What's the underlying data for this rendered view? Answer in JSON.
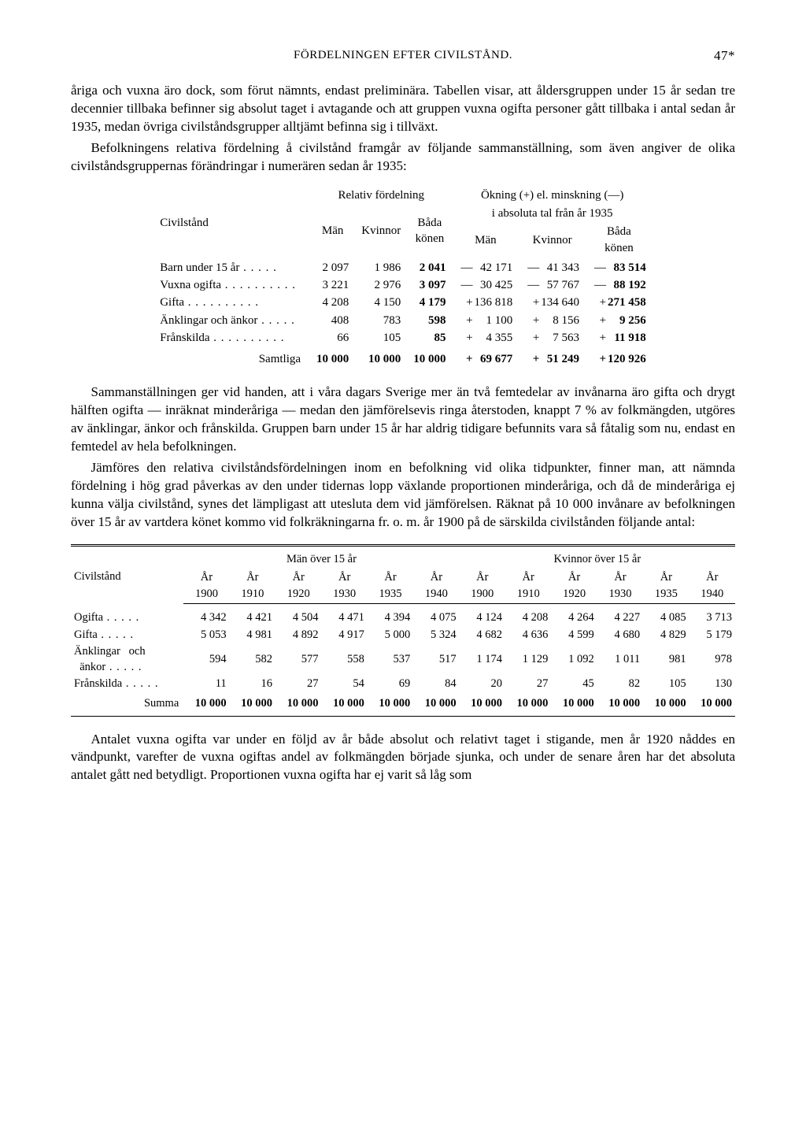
{
  "header": {
    "running_title": "FÖRDELNINGEN EFTER CIVILSTÅND.",
    "page_number": "47*"
  },
  "para1": "åriga och vuxna äro dock, som förut nämnts, endast preliminära. Tabellen visar, att åldersgruppen under 15 år sedan tre decennier tillbaka befinner sig absolut taget i avtagande och att gruppen vuxna ogifta personer gått tillbaka i antal sedan år 1935, medan övriga civilståndsgrupper alltjämt befinna sig i tillväxt.",
  "para2": "Befolkningens relativa fördelning å civilstånd framgår av följande sammanställning, som även angiver de olika civilståndsgruppernas förändringar i numerären sedan år 1935:",
  "table1": {
    "col_group_a": "Relativ fördelning",
    "col_group_b_line1": "Ökning (+) el. minskning (—)",
    "col_group_b_line2": "i absoluta tal från år 1935",
    "row_header": "Civilstånd",
    "sub_a": [
      "Män",
      "Kvinnor",
      "Båda könen"
    ],
    "sub_b": [
      "Män",
      "Kvinnor",
      "Båda könen"
    ],
    "rows": [
      {
        "label": "Barn under 15 år",
        "a": [
          "2 097",
          "1 986",
          "2 041"
        ],
        "s": [
          "—",
          "—",
          "—"
        ],
        "b": [
          "42 171",
          "41 343",
          "83 514"
        ]
      },
      {
        "label": "Vuxna ogifta",
        "a": [
          "3 221",
          "2 976",
          "3 097"
        ],
        "s": [
          "—",
          "—",
          "—"
        ],
        "b": [
          "30 425",
          "57 767",
          "88 192"
        ]
      },
      {
        "label": "Gifta",
        "a": [
          "4 208",
          "4 150",
          "4 179"
        ],
        "s": [
          "+",
          "+",
          "+"
        ],
        "b": [
          "136 818",
          "134 640",
          "271 458"
        ]
      },
      {
        "label": "Änklingar och änkor",
        "a": [
          "408",
          "783",
          "598"
        ],
        "s": [
          "+",
          "+",
          "+"
        ],
        "b": [
          "1 100",
          "8 156",
          "9 256"
        ]
      },
      {
        "label": "Frånskilda",
        "a": [
          "66",
          "105",
          "85"
        ],
        "s": [
          "+",
          "+",
          "+"
        ],
        "b": [
          "4 355",
          "7 563",
          "11 918"
        ]
      }
    ],
    "sum_label": "Samtliga",
    "sum_a": [
      "10 000",
      "10 000",
      "10 000"
    ],
    "sum_s": [
      "+",
      "+",
      "+"
    ],
    "sum_b": [
      "69 677",
      "51 249",
      "120 926"
    ]
  },
  "para3": "Sammanställningen ger vid handen, att i våra dagars Sverige mer än två femtedelar av invånarna äro gifta och drygt hälften ogifta — inräknat minderåriga — medan den jämförelsevis ringa återstoden, knappt 7 % av folkmängden, utgöres av änklingar, änkor och frånskilda. Gruppen barn under 15 år har aldrig tidigare befunnits vara så fåtalig som nu, endast en femtedel av hela befolkningen.",
  "para4": "Jämföres den relativa civilståndsfördelningen inom en befolkning vid olika tidpunkter, finner man, att nämnda fördelning i hög grad påverkas av den under tidernas lopp växlande proportionen minderåriga, och då de minderåriga ej kunna välja civilstånd, synes det lämpligast att utesluta dem vid jämförelsen. Räknat på 10 000 invånare av befolkningen över 15 år av vartdera könet kommo vid folkräkningarna fr. o. m. år 1900 på de särskilda civilstånden följande antal:",
  "table2": {
    "row_header": "Civilstånd",
    "group_m": "Män över 15 år",
    "group_k": "Kvinnor över 15 år",
    "years": [
      "År 1900",
      "År 1910",
      "År 1920",
      "År 1930",
      "År 1935",
      "År 1940",
      "År 1900",
      "År 1910",
      "År 1920",
      "År 1930",
      "År 1935",
      "År 1940"
    ],
    "year_top": [
      "År",
      "År",
      "År",
      "År",
      "År",
      "År",
      "År",
      "År",
      "År",
      "År",
      "År",
      "År"
    ],
    "year_bot": [
      "1900",
      "1910",
      "1920",
      "1930",
      "1935",
      "1940",
      "1900",
      "1910",
      "1920",
      "1930",
      "1935",
      "1940"
    ],
    "rows": [
      {
        "label": "Ogifta",
        "v": [
          "4 342",
          "4 421",
          "4 504",
          "4 471",
          "4 394",
          "4 075",
          "4 124",
          "4 208",
          "4 264",
          "4 227",
          "4 085",
          "3 713"
        ]
      },
      {
        "label": "Gifta",
        "v": [
          "5 053",
          "4 981",
          "4 892",
          "4 917",
          "5 000",
          "5 324",
          "4 682",
          "4 636",
          "4 599",
          "4 680",
          "4 829",
          "5 179"
        ]
      },
      {
        "label": "Änklingar och änkor",
        "v": [
          "594",
          "582",
          "577",
          "558",
          "537",
          "517",
          "1 174",
          "1 129",
          "1 092",
          "1 011",
          "981",
          "978"
        ]
      },
      {
        "label": "Frånskilda",
        "v": [
          "11",
          "16",
          "27",
          "54",
          "69",
          "84",
          "20",
          "27",
          "45",
          "82",
          "105",
          "130"
        ]
      }
    ],
    "sum_label": "Summa",
    "sum": [
      "10 000",
      "10 000",
      "10 000",
      "10 000",
      "10 000",
      "10 000",
      "10 000",
      "10 000",
      "10 000",
      "10 000",
      "10 000",
      "10 000"
    ]
  },
  "para5": "Antalet vuxna ogifta var under en följd av år både absolut och relativt taget i stigande, men år 1920 nåddes en vändpunkt, varefter de vuxna ogiftas andel av folkmängden började sjunka, och under de senare åren har det absoluta antalet gått ned betydligt. Proportionen vuxna ogifta har ej varit så låg som"
}
